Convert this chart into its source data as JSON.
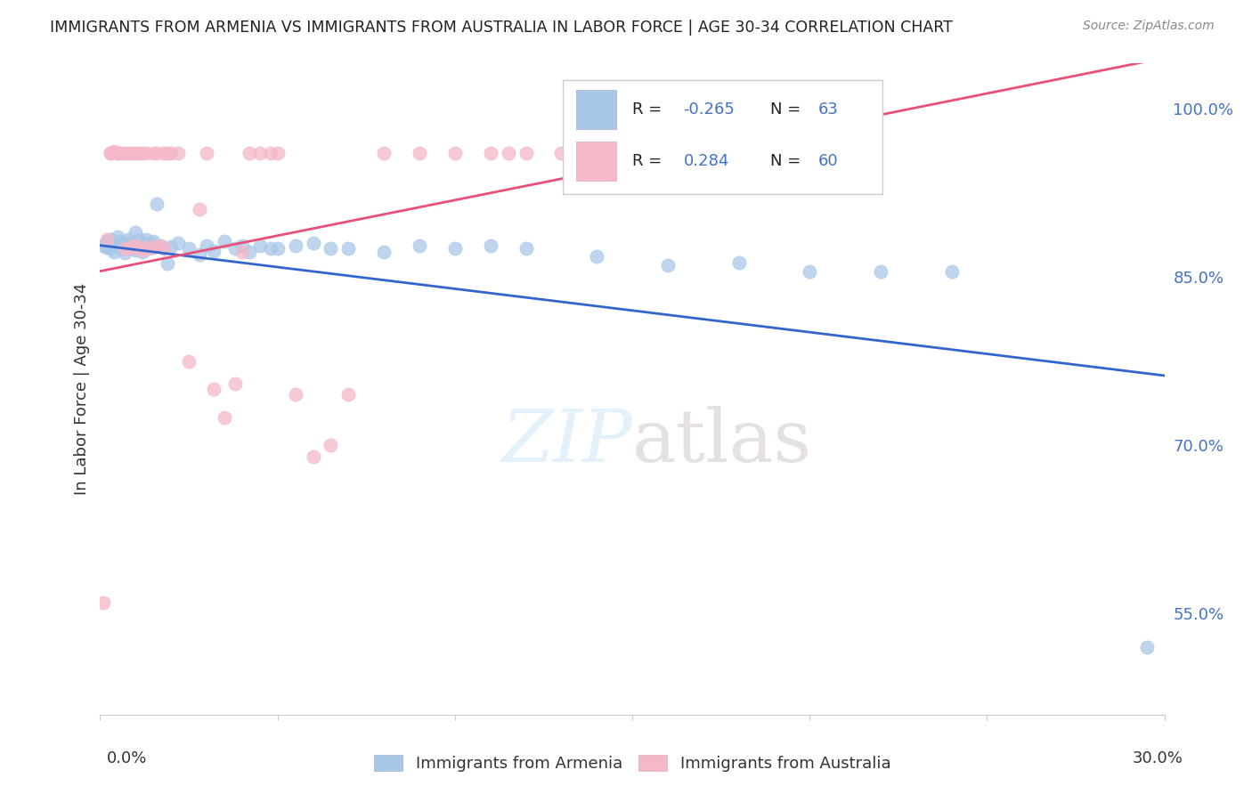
{
  "title": "IMMIGRANTS FROM ARMENIA VS IMMIGRANTS FROM AUSTRALIA IN LABOR FORCE | AGE 30-34 CORRELATION CHART",
  "source": "Source: ZipAtlas.com",
  "ylabel": "In Labor Force | Age 30-34",
  "y_ticks": [
    0.55,
    0.7,
    0.85,
    1.0
  ],
  "y_tick_labels": [
    "55.0%",
    "70.0%",
    "85.0%",
    "100.0%"
  ],
  "x_min": 0.0,
  "x_max": 0.3,
  "y_min": 0.46,
  "y_max": 1.04,
  "armenia_color": "#a8c8e8",
  "australia_color": "#f4b8c8",
  "armenia_line_color": "#3366cc",
  "australia_line_color": "#e8507a",
  "armenia_R": -0.265,
  "armenia_N": 63,
  "australia_R": 0.284,
  "australia_N": 60,
  "watermark": "ZIPatlas",
  "grid_color": "#cccccc",
  "legend_R1": "R = ",
  "legend_V1": "-0.265",
  "legend_N1": "N = ",
  "legend_NV1": "63",
  "legend_R2": "R =  ",
  "legend_V2": "0.284",
  "legend_N2": "N = ",
  "legend_NV2": "60",
  "arm_label": "Immigrants from Armenia",
  "aus_label": "Immigrants from Australia"
}
